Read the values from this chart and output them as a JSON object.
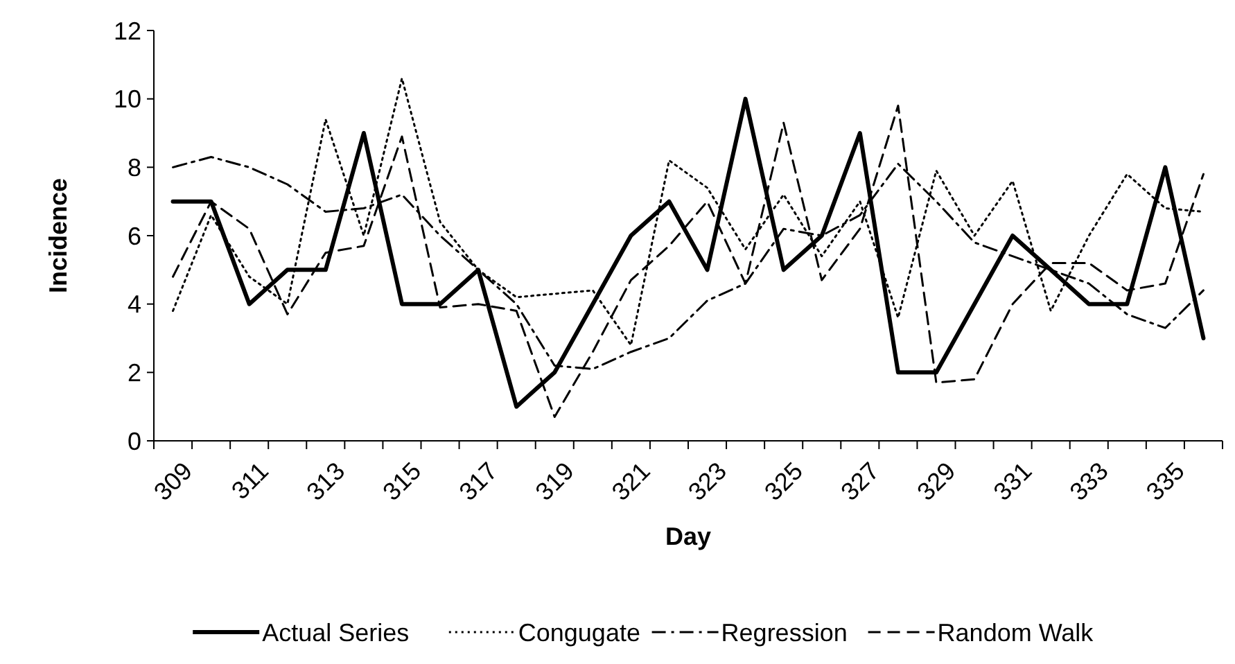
{
  "chart_data": {
    "type": "line",
    "xlabel": "Day",
    "ylabel": "Incidence",
    "categories": [
      "309",
      null,
      "311",
      null,
      "313",
      null,
      "315",
      null,
      "317",
      null,
      "319",
      null,
      "321",
      null,
      "323",
      null,
      "325",
      null,
      "327",
      null,
      "329",
      null,
      "331",
      null,
      "333",
      null,
      "335",
      null
    ],
    "ylim": [
      0,
      12
    ],
    "yticks": [
      0,
      2,
      4,
      6,
      8,
      10,
      12
    ],
    "grid": false,
    "legend": "bottom",
    "series": [
      {
        "name": "Actual Series",
        "color": "#000000",
        "line_style": "solid",
        "values": [
          7,
          7,
          4,
          5,
          5,
          9,
          4,
          4,
          5,
          1,
          2,
          4,
          6,
          7,
          5,
          10,
          5,
          6,
          9,
          2,
          2,
          4,
          6,
          5,
          4,
          4,
          8,
          3
        ]
      },
      {
        "name": "Congugate",
        "color": "#000000",
        "line_style": "dotted",
        "values": [
          3.8,
          6.6,
          4.8,
          4.0,
          9.4,
          6.0,
          10.6,
          6.4,
          5.0,
          4.2,
          4.3,
          4.4,
          2.8,
          8.2,
          7.4,
          5.6,
          7.2,
          5.4,
          7.0,
          3.6,
          7.9,
          6.0,
          7.6,
          3.8,
          6.0,
          7.8,
          6.8,
          6.7
        ]
      },
      {
        "name": "Regression",
        "color": "#000000",
        "line_style": "dashdot",
        "values": [
          8.0,
          8.3,
          8.0,
          7.5,
          6.7,
          6.8,
          7.2,
          6.0,
          5.0,
          4.0,
          2.2,
          2.1,
          2.6,
          3.0,
          4.1,
          4.6,
          6.2,
          6.0,
          6.6,
          8.1,
          7.0,
          5.8,
          5.4,
          5.0,
          4.6,
          3.7,
          3.3,
          4.4
        ]
      },
      {
        "name": "Random Walk",
        "color": "#000000",
        "line_style": "dashed",
        "values": [
          4.8,
          7.0,
          6.2,
          3.7,
          5.5,
          5.7,
          8.9,
          3.9,
          4.0,
          3.8,
          0.7,
          2.6,
          4.7,
          5.7,
          7.0,
          4.6,
          9.3,
          4.7,
          6.2,
          9.8,
          1.7,
          1.8,
          4.0,
          5.2,
          5.2,
          4.4,
          4.6,
          7.8
        ]
      }
    ]
  }
}
